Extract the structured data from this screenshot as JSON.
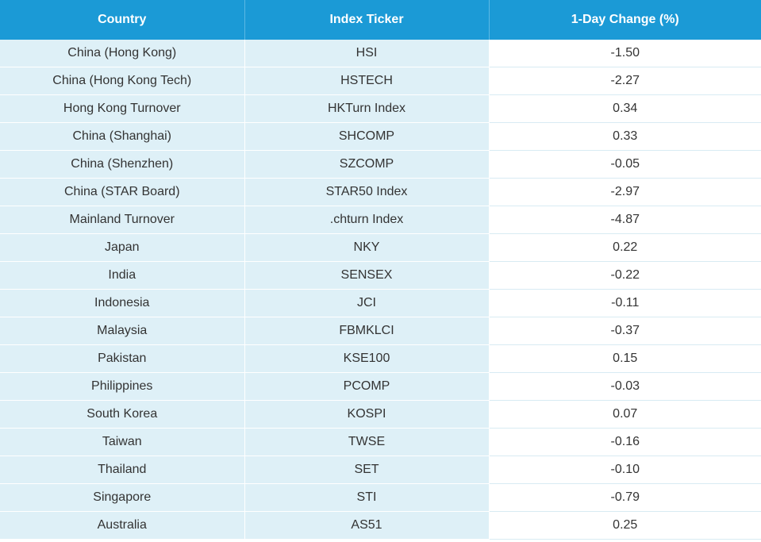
{
  "table": {
    "headers": [
      "Country",
      "Index Ticker",
      "1-Day Change (%)"
    ],
    "rows": [
      [
        "China (Hong Kong)",
        "HSI",
        "-1.50"
      ],
      [
        "China (Hong Kong Tech)",
        "HSTECH",
        "-2.27"
      ],
      [
        "Hong Kong Turnover",
        "HKTurn Index",
        "0.34"
      ],
      [
        "China (Shanghai)",
        "SHCOMP",
        "0.33"
      ],
      [
        "China (Shenzhen)",
        "SZCOMP",
        "-0.05"
      ],
      [
        "China (STAR Board)",
        "STAR50 Index",
        "-2.97"
      ],
      [
        "Mainland Turnover",
        ".chturn Index",
        "-4.87"
      ],
      [
        "Japan",
        "NKY",
        "0.22"
      ],
      [
        "India",
        "SENSEX",
        "-0.22"
      ],
      [
        "Indonesia",
        "JCI",
        "-0.11"
      ],
      [
        "Malaysia",
        "FBMKLCI",
        "-0.37"
      ],
      [
        "Pakistan",
        "KSE100",
        "0.15"
      ],
      [
        "Philippines",
        "PCOMP",
        "-0.03"
      ],
      [
        "South Korea",
        "KOSPI",
        "0.07"
      ],
      [
        "Taiwan",
        "TWSE",
        "-0.16"
      ],
      [
        "Thailand",
        "SET",
        "-0.10"
      ],
      [
        "Singapore",
        "STI",
        "-0.79"
      ],
      [
        "Australia",
        "AS51",
        "0.25"
      ]
    ]
  }
}
